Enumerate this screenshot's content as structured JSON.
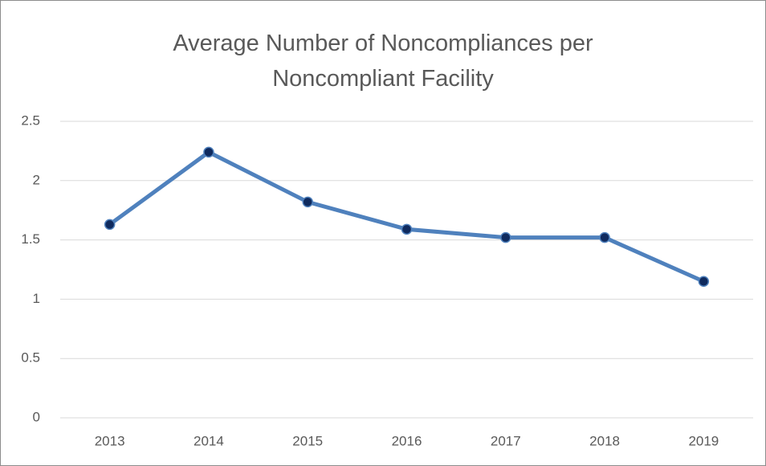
{
  "chart_data": {
    "type": "line",
    "title": "Average Number of Noncompliances per Noncompliant Facility",
    "categories": [
      "2013",
      "2014",
      "2015",
      "2016",
      "2017",
      "2018",
      "2019"
    ],
    "values": [
      1.63,
      2.24,
      1.82,
      1.59,
      1.52,
      1.52,
      1.15
    ],
    "color": "#4f81bd",
    "marker_color": "#0f2a5e",
    "ylim": [
      0,
      2.5
    ],
    "yticks": [
      0,
      0.5,
      1,
      1.5,
      2,
      2.5
    ],
    "grid": true
  }
}
